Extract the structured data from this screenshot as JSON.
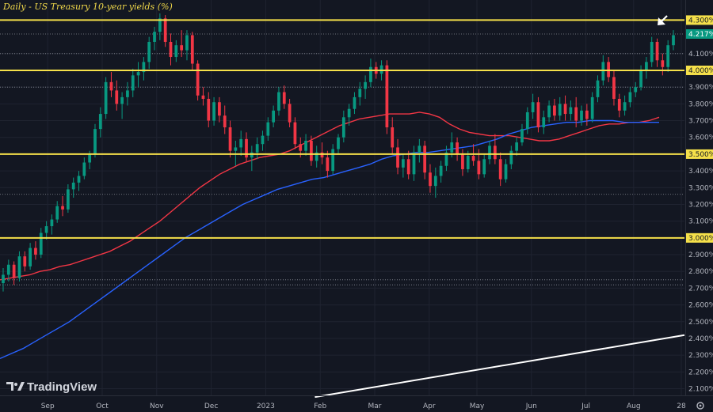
{
  "app": {
    "brand": "TradingView",
    "settings_icon": "gear-icon"
  },
  "chart_data": {
    "type": "candlestick",
    "title": "Daily - US Treasury 10-year yields (%)",
    "xlabel": "",
    "ylabel": "",
    "ylim": [
      2.06,
      4.42
    ],
    "y_ticks": [
      "4.300%",
      "4.100%",
      "4.000%",
      "3.900%",
      "3.800%",
      "3.700%",
      "3.600%",
      "3.500%",
      "3.400%",
      "3.300%",
      "3.200%",
      "3.100%",
      "3.000%",
      "2.900%",
      "2.800%",
      "2.700%",
      "2.600%",
      "2.500%",
      "2.400%",
      "2.300%",
      "2.200%",
      "2.100%"
    ],
    "x_ticks": [
      "Sep",
      "Oct",
      "Nov",
      "Dec",
      "2023",
      "Feb",
      "Mar",
      "Apr",
      "May",
      "Jun",
      "Jul",
      "Aug",
      "28"
    ],
    "current_value_label": "4.217%",
    "horizontal_levels": [
      {
        "label": "4.300%",
        "value": 4.3
      },
      {
        "label": "4.000%",
        "value": 4.0
      },
      {
        "label": "3.500%",
        "value": 3.5
      },
      {
        "label": "3.000%",
        "value": 3.0
      }
    ],
    "dotted_levels": [
      4.217,
      4.1,
      3.9,
      3.26,
      2.75,
      2.72
    ],
    "candles": [
      [
        2.73,
        2.82,
        2.68,
        2.78
      ],
      [
        2.78,
        2.87,
        2.74,
        2.84
      ],
      [
        2.84,
        2.86,
        2.72,
        2.76
      ],
      [
        2.76,
        2.92,
        2.74,
        2.89
      ],
      [
        2.89,
        2.92,
        2.8,
        2.83
      ],
      [
        2.83,
        2.97,
        2.81,
        2.94
      ],
      [
        2.94,
        2.98,
        2.87,
        2.9
      ],
      [
        2.9,
        3.06,
        2.88,
        3.03
      ],
      [
        3.03,
        3.1,
        2.99,
        3.07
      ],
      [
        3.07,
        3.14,
        3.02,
        3.11
      ],
      [
        3.11,
        3.22,
        3.09,
        3.19
      ],
      [
        3.19,
        3.25,
        3.13,
        3.17
      ],
      [
        3.17,
        3.32,
        3.15,
        3.29
      ],
      [
        3.29,
        3.36,
        3.24,
        3.33
      ],
      [
        3.33,
        3.4,
        3.28,
        3.37
      ],
      [
        3.37,
        3.48,
        3.35,
        3.45
      ],
      [
        3.45,
        3.52,
        3.41,
        3.5
      ],
      [
        3.5,
        3.68,
        3.48,
        3.65
      ],
      [
        3.65,
        3.78,
        3.6,
        3.74
      ],
      [
        3.74,
        3.96,
        3.71,
        3.93
      ],
      [
        3.93,
        3.99,
        3.84,
        3.88
      ],
      [
        3.88,
        3.94,
        3.76,
        3.8
      ],
      [
        3.8,
        3.87,
        3.71,
        3.84
      ],
      [
        3.84,
        3.93,
        3.79,
        3.88
      ],
      [
        3.88,
        4.01,
        3.84,
        3.97
      ],
      [
        3.97,
        4.05,
        3.9,
        3.99
      ],
      [
        3.99,
        4.08,
        3.94,
        4.05
      ],
      [
        4.05,
        4.2,
        4.01,
        4.17
      ],
      [
        4.17,
        4.26,
        4.12,
        4.23
      ],
      [
        4.23,
        4.34,
        4.18,
        4.31
      ],
      [
        4.31,
        4.33,
        4.14,
        4.17
      ],
      [
        4.17,
        4.22,
        4.03,
        4.08
      ],
      [
        4.08,
        4.18,
        4.05,
        4.15
      ],
      [
        4.15,
        4.24,
        4.08,
        4.12
      ],
      [
        4.12,
        4.24,
        4.06,
        4.21
      ],
      [
        4.21,
        4.23,
        4.0,
        4.04
      ],
      [
        4.04,
        4.06,
        3.82,
        3.85
      ],
      [
        3.85,
        3.9,
        3.79,
        3.83
      ],
      [
        3.83,
        3.87,
        3.66,
        3.7
      ],
      [
        3.7,
        3.84,
        3.67,
        3.81
      ],
      [
        3.81,
        3.84,
        3.69,
        3.73
      ],
      [
        3.73,
        3.79,
        3.62,
        3.66
      ],
      [
        3.66,
        3.7,
        3.48,
        3.52
      ],
      [
        3.52,
        3.58,
        3.43,
        3.54
      ],
      [
        3.54,
        3.64,
        3.49,
        3.59
      ],
      [
        3.59,
        3.63,
        3.45,
        3.48
      ],
      [
        3.48,
        3.55,
        3.4,
        3.51
      ],
      [
        3.51,
        3.6,
        3.47,
        3.56
      ],
      [
        3.56,
        3.64,
        3.52,
        3.61
      ],
      [
        3.61,
        3.72,
        3.58,
        3.69
      ],
      [
        3.69,
        3.79,
        3.66,
        3.76
      ],
      [
        3.76,
        3.9,
        3.73,
        3.87
      ],
      [
        3.87,
        3.91,
        3.77,
        3.8
      ],
      [
        3.8,
        3.83,
        3.66,
        3.69
      ],
      [
        3.69,
        3.72,
        3.53,
        3.56
      ],
      [
        3.56,
        3.6,
        3.48,
        3.52
      ],
      [
        3.52,
        3.62,
        3.49,
        3.58
      ],
      [
        3.58,
        3.61,
        3.43,
        3.46
      ],
      [
        3.46,
        3.55,
        3.42,
        3.51
      ],
      [
        3.51,
        3.57,
        3.44,
        3.48
      ],
      [
        3.48,
        3.52,
        3.36,
        3.4
      ],
      [
        3.4,
        3.56,
        3.38,
        3.53
      ],
      [
        3.53,
        3.62,
        3.5,
        3.6
      ],
      [
        3.6,
        3.76,
        3.57,
        3.72
      ],
      [
        3.72,
        3.8,
        3.67,
        3.77
      ],
      [
        3.77,
        3.87,
        3.74,
        3.84
      ],
      [
        3.84,
        3.93,
        3.79,
        3.89
      ],
      [
        3.89,
        3.97,
        3.83,
        3.93
      ],
      [
        3.93,
        4.07,
        3.9,
        4.02
      ],
      [
        4.02,
        4.05,
        3.95,
        3.98
      ],
      [
        3.98,
        4.06,
        3.94,
        4.03
      ],
      [
        4.03,
        4.06,
        3.62,
        3.66
      ],
      [
        3.66,
        3.72,
        3.5,
        3.54
      ],
      [
        3.54,
        3.59,
        3.38,
        3.42
      ],
      [
        3.42,
        3.5,
        3.36,
        3.47
      ],
      [
        3.47,
        3.52,
        3.35,
        3.38
      ],
      [
        3.38,
        3.55,
        3.34,
        3.51
      ],
      [
        3.51,
        3.59,
        3.45,
        3.55
      ],
      [
        3.55,
        3.58,
        3.35,
        3.39
      ],
      [
        3.39,
        3.44,
        3.27,
        3.31
      ],
      [
        3.31,
        3.42,
        3.24,
        3.37
      ],
      [
        3.37,
        3.46,
        3.33,
        3.43
      ],
      [
        3.43,
        3.55,
        3.4,
        3.51
      ],
      [
        3.51,
        3.63,
        3.48,
        3.57
      ],
      [
        3.57,
        3.6,
        3.46,
        3.5
      ],
      [
        3.5,
        3.53,
        3.37,
        3.41
      ],
      [
        3.41,
        3.52,
        3.39,
        3.49
      ],
      [
        3.49,
        3.56,
        3.43,
        3.46
      ],
      [
        3.46,
        3.53,
        3.35,
        3.38
      ],
      [
        3.38,
        3.5,
        3.36,
        3.47
      ],
      [
        3.47,
        3.58,
        3.44,
        3.55
      ],
      [
        3.55,
        3.62,
        3.44,
        3.47
      ],
      [
        3.47,
        3.51,
        3.31,
        3.35
      ],
      [
        3.35,
        3.47,
        3.33,
        3.44
      ],
      [
        3.44,
        3.55,
        3.41,
        3.52
      ],
      [
        3.52,
        3.6,
        3.49,
        3.57
      ],
      [
        3.57,
        3.68,
        3.55,
        3.65
      ],
      [
        3.65,
        3.78,
        3.62,
        3.75
      ],
      [
        3.75,
        3.86,
        3.71,
        3.81
      ],
      [
        3.81,
        3.84,
        3.63,
        3.66
      ],
      [
        3.66,
        3.76,
        3.62,
        3.72
      ],
      [
        3.72,
        3.82,
        3.69,
        3.79
      ],
      [
        3.79,
        3.83,
        3.7,
        3.73
      ],
      [
        3.73,
        3.84,
        3.7,
        3.8
      ],
      [
        3.8,
        3.85,
        3.7,
        3.74
      ],
      [
        3.74,
        3.82,
        3.7,
        3.78
      ],
      [
        3.78,
        3.84,
        3.66,
        3.7
      ],
      [
        3.7,
        3.79,
        3.67,
        3.76
      ],
      [
        3.76,
        3.8,
        3.67,
        3.71
      ],
      [
        3.71,
        3.87,
        3.69,
        3.84
      ],
      [
        3.84,
        3.97,
        3.81,
        3.94
      ],
      [
        3.94,
        4.09,
        3.91,
        4.05
      ],
      [
        4.05,
        4.08,
        3.93,
        3.96
      ],
      [
        3.96,
        4.0,
        3.79,
        3.83
      ],
      [
        3.83,
        3.86,
        3.72,
        3.76
      ],
      [
        3.76,
        3.85,
        3.73,
        3.81
      ],
      [
        3.81,
        3.9,
        3.78,
        3.87
      ],
      [
        3.87,
        3.93,
        3.84,
        3.9
      ],
      [
        3.9,
        4.03,
        3.88,
        4.0
      ],
      [
        4.0,
        4.08,
        3.95,
        4.05
      ],
      [
        4.05,
        4.2,
        4.02,
        4.17
      ],
      [
        4.17,
        4.19,
        4.02,
        4.06
      ],
      [
        4.06,
        4.1,
        3.97,
        4.02
      ],
      [
        4.02,
        4.18,
        3.99,
        4.15
      ],
      [
        4.15,
        4.24,
        4.12,
        4.21
      ]
    ],
    "moving_averages": [
      {
        "name": "",
        "color": "#f23645",
        "values": [
          2.75,
          2.76,
          2.77,
          2.78,
          2.8,
          2.81,
          2.83,
          2.84,
          2.86,
          2.88,
          2.9,
          2.92,
          2.95,
          2.98,
          3.02,
          3.06,
          3.1,
          3.15,
          3.2,
          3.25,
          3.3,
          3.34,
          3.38,
          3.41,
          3.44,
          3.46,
          3.48,
          3.49,
          3.5,
          3.52,
          3.55,
          3.58,
          3.61,
          3.64,
          3.67,
          3.69,
          3.71,
          3.72,
          3.73,
          3.74,
          3.74,
          3.74,
          3.75,
          3.74,
          3.72,
          3.68,
          3.65,
          3.63,
          3.62,
          3.61,
          3.61,
          3.61,
          3.6,
          3.59,
          3.58,
          3.58,
          3.59,
          3.61,
          3.63,
          3.65,
          3.67,
          3.68,
          3.68,
          3.69,
          3.69,
          3.7,
          3.72
        ]
      },
      {
        "name": "",
        "color": "#2962ff",
        "values": [
          2.28,
          2.31,
          2.34,
          2.38,
          2.42,
          2.46,
          2.5,
          2.55,
          2.6,
          2.65,
          2.7,
          2.75,
          2.8,
          2.85,
          2.9,
          2.95,
          3.0,
          3.04,
          3.08,
          3.12,
          3.16,
          3.2,
          3.23,
          3.26,
          3.29,
          3.31,
          3.33,
          3.35,
          3.36,
          3.38,
          3.4,
          3.42,
          3.44,
          3.47,
          3.49,
          3.5,
          3.51,
          3.51,
          3.52,
          3.53,
          3.54,
          3.55,
          3.57,
          3.59,
          3.62,
          3.64,
          3.66,
          3.67,
          3.68,
          3.69,
          3.69,
          3.7,
          3.7,
          3.7,
          3.69,
          3.69,
          3.69,
          3.69
        ]
      }
    ],
    "trendline": {
      "color": "#ffffff",
      "from": [
        0.46,
        2.05
      ],
      "to": [
        1.0,
        2.42
      ]
    },
    "annotation_arrow": {
      "color": "#ffffff",
      "direction": "down-left"
    }
  }
}
